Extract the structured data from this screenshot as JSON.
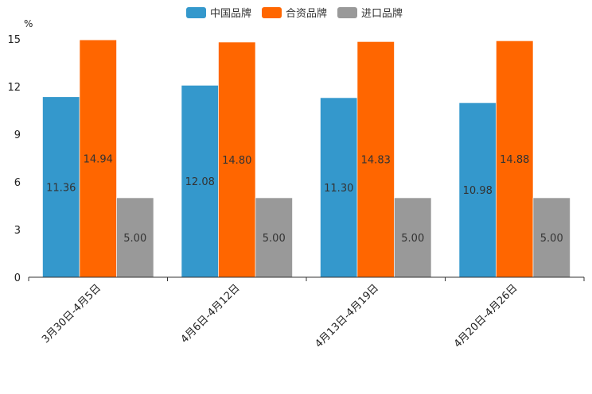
{
  "chart_data": {
    "type": "bar",
    "title": "",
    "ylabel": "%",
    "xlabel": "",
    "ylim": [
      0,
      15
    ],
    "yticks": [
      0,
      3,
      6,
      9,
      12,
      15
    ],
    "legend_position": "top-center",
    "categories": [
      "3月30日-4月5日",
      "4月6日-4月12日",
      "4月13日-4月19日",
      "4月20日-4月26日"
    ],
    "series": [
      {
        "name": "中国品牌",
        "color": "#3498cc",
        "values": [
          11.36,
          12.08,
          11.3,
          10.98
        ],
        "labels": [
          "11.36",
          "12.08",
          "11.30",
          "10.98"
        ]
      },
      {
        "name": "合资品牌",
        "color": "#ff6600",
        "values": [
          14.94,
          14.8,
          14.83,
          14.88
        ],
        "labels": [
          "14.94",
          "14.80",
          "14.83",
          "14.88"
        ]
      },
      {
        "name": "进口品牌",
        "color": "#999999",
        "values": [
          5.0,
          5.0,
          5.0,
          5.0
        ],
        "labels": [
          "5.00",
          "5.00",
          "5.00",
          "5.00"
        ]
      }
    ]
  }
}
